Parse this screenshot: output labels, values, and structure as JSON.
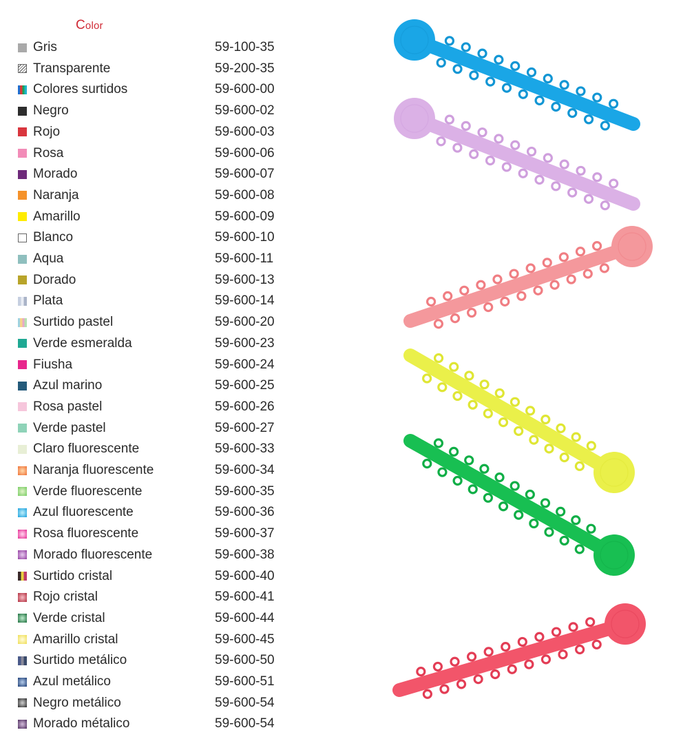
{
  "header": {
    "title_first": "C",
    "title_rest": "olor"
  },
  "colors": [
    {
      "name": "Gris",
      "code": "59-100-35",
      "swatch": "#a9a9a9"
    },
    {
      "name": "Transparente",
      "code": "59-200-35",
      "swatch": "hatch"
    },
    {
      "name": "Colores surtidos",
      "code": "59-600-00",
      "swatch": [
        "#1f6fd1",
        "#d63a3a",
        "#1aa35a",
        "#1fb5c9"
      ]
    },
    {
      "name": "Negro",
      "code": "59-600-02",
      "swatch": "#2d2d2d"
    },
    {
      "name": "Rojo",
      "code": "59-600-03",
      "swatch": "#d9363e"
    },
    {
      "name": "Rosa",
      "code": "59-600-06",
      "swatch": "#f28cb8"
    },
    {
      "name": "Morado",
      "code": "59-600-07",
      "swatch": "#6e2a7a"
    },
    {
      "name": "Naranja",
      "code": "59-600-08",
      "swatch": "#f5922a"
    },
    {
      "name": "Amarillo",
      "code": "59-600-09",
      "swatch": "#ffec00"
    },
    {
      "name": "Blanco",
      "code": "59-600-10",
      "swatch": "outline"
    },
    {
      "name": "Aqua",
      "code": "59-600-11",
      "swatch": "#8fbfbe"
    },
    {
      "name": "Dorado",
      "code": "59-600-13",
      "swatch": "#b8a42a"
    },
    {
      "name": "Plata",
      "code": "59-600-14",
      "swatch": [
        "#c6cfe0",
        "#e9edf4",
        "#aab4c8"
      ]
    },
    {
      "name": "Surtido pastel",
      "code": "59-600-20",
      "swatch": [
        "#9fd3e0",
        "#f6d38a",
        "#e8a8c8",
        "#b6e0b0"
      ]
    },
    {
      "name": "Verde esmeralda",
      "code": "59-600-23",
      "swatch": "#1fa893"
    },
    {
      "name": "Fiusha",
      "code": "59-600-24",
      "swatch": "#e8268c"
    },
    {
      "name": "Azul marino",
      "code": "59-600-25",
      "swatch": "#245a7a"
    },
    {
      "name": "Rosa pastel",
      "code": "59-600-26",
      "swatch": "#f6c6dc"
    },
    {
      "name": "Verde pastel",
      "code": "59-600-27",
      "swatch": "#8fd3b8"
    },
    {
      "name": "Claro fluorescente",
      "code": "59-600-33",
      "swatch": "#e8efd6"
    },
    {
      "name": "Naranja fluorescente",
      "code": "59-600-34",
      "swatch": "radial:#ffd0a0:#f07a40"
    },
    {
      "name": "Verde fluorescente",
      "code": "59-600-35",
      "swatch": "radial:#d8f0c0:#7fcf6a"
    },
    {
      "name": "Azul fluorescente",
      "code": "59-600-36",
      "swatch": "radial:#b0e8f8:#2aa8e0"
    },
    {
      "name": "Rosa fluorescente",
      "code": "59-600-37",
      "swatch": "radial:#ffc8e8:#e83c9c"
    },
    {
      "name": "Morado fluorescente",
      "code": "59-600-38",
      "swatch": "radial:#e0c0e8:#9a4aa8"
    },
    {
      "name": "Surtido cristal",
      "code": "59-600-40",
      "swatch": [
        "#3a2a2a",
        "#e8d040",
        "#c03a6a"
      ]
    },
    {
      "name": "Rojo cristal",
      "code": "59-600-41",
      "swatch": "radial:#f0b0b8:#b83a4a"
    },
    {
      "name": "Verde cristal",
      "code": "59-600-44",
      "swatch": "radial:#b0e0c0:#2a7a4a"
    },
    {
      "name": "Amarillo cristal",
      "code": "59-600-45",
      "swatch": "radial:#fffad0:#f0e060"
    },
    {
      "name": "Surtido metálico",
      "code": "59-600-50",
      "swatch": [
        "#4a5a8a",
        "#8a8a9a",
        "#3a4a6a"
      ]
    },
    {
      "name": "Azul metálico",
      "code": "59-600-51",
      "swatch": "radial:#a8c0e0:#2a4a80"
    },
    {
      "name": "Negro metálico",
      "code": "59-600-54",
      "swatch": "radial:#c0c0c0:#3a3a3a"
    },
    {
      "name": "Morado métalico",
      "code": "59-600-54",
      "swatch": "radial:#c8b0d0:#5a3a6a"
    }
  ],
  "product_images": [
    {
      "color": "#1aa6e6",
      "ring": "#1296d4",
      "direction": "ltr-down",
      "label": "light blue ligature stick"
    },
    {
      "color": "#dbb1e6",
      "ring": "#cf9fdd",
      "direction": "ltr-down",
      "label": "lavender ligature stick"
    },
    {
      "color": "#f4989c",
      "ring": "#f07e83",
      "direction": "rtl-up",
      "label": "pink ligature stick"
    },
    {
      "color": "#eaf04a",
      "ring": "#dfe634",
      "direction": "ltr-down-head-right",
      "label": "yellow ligature stick"
    },
    {
      "color": "#18bf52",
      "ring": "#0fae46",
      "direction": "ltr-down-head-right",
      "label": "green ligature stick"
    },
    {
      "color": "#f2556a",
      "ring": "#e33d55",
      "direction": "rtl-up",
      "label": "red ligature stick"
    }
  ]
}
